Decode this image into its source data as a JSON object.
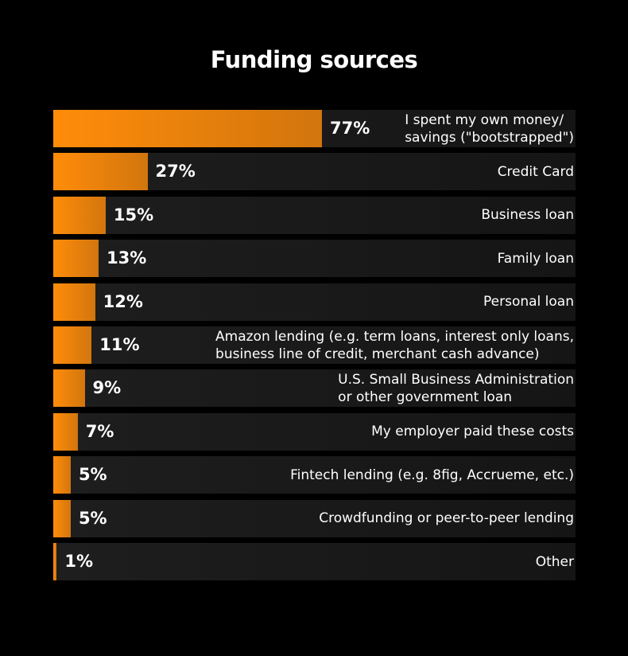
{
  "chart_data": {
    "type": "bar",
    "orientation": "horizontal",
    "title": "Funding sources",
    "categories": [
      "I spent my own money/\nsavings (\"bootstrapped\")",
      "Credit Card",
      "Business loan",
      "Family loan",
      "Personal loan",
      "Amazon lending (e.g. term loans, interest only loans,\nbusiness line of credit, merchant cash advance)",
      "U.S. Small Business Administration\nor other government loan",
      "My employer paid these costs",
      "Fintech lending (e.g. 8fig, Accrueme, etc.)",
      "Crowdfunding or peer-to-peer lending",
      "Other"
    ],
    "values": [
      77,
      27,
      15,
      13,
      12,
      11,
      9,
      7,
      5,
      5,
      1
    ],
    "value_labels": [
      "77%",
      "27%",
      "15%",
      "13%",
      "12%",
      "11%",
      "9%",
      "7%",
      "5%",
      "5%",
      "1%"
    ],
    "color": "#ff8c0a",
    "xlim": [
      0,
      100
    ]
  }
}
